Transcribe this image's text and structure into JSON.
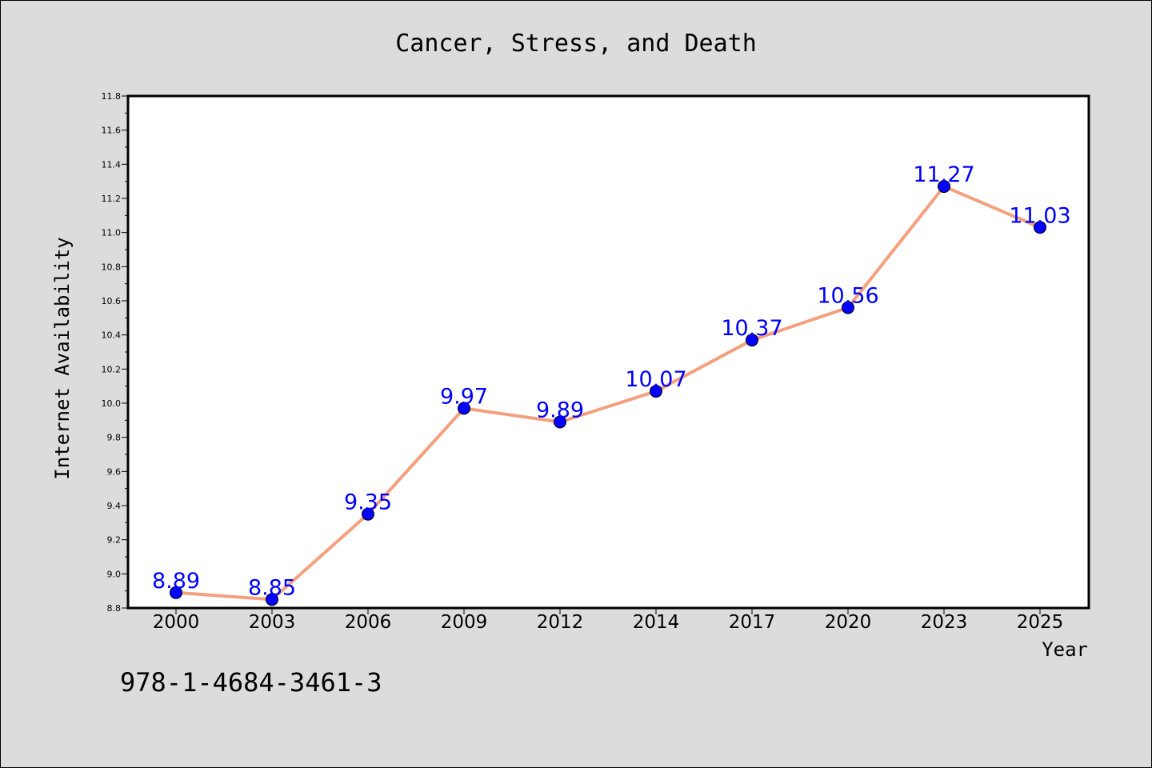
{
  "chart_data": {
    "type": "line",
    "title": "Cancer, Stress, and Death",
    "xlabel": "Year",
    "ylabel": "Internet Availability",
    "categories": [
      "2000",
      "2003",
      "2006",
      "2009",
      "2012",
      "2014",
      "2017",
      "2020",
      "2023",
      "2025"
    ],
    "values": [
      8.89,
      8.85,
      9.35,
      9.97,
      9.89,
      10.07,
      10.37,
      10.56,
      11.27,
      11.03
    ],
    "data_labels": [
      "8.89",
      "8.85",
      "9.35",
      "9.97",
      "9.89",
      "10.07",
      "10.37",
      "10.56",
      "11.27",
      "11.03"
    ],
    "ylim": [
      8.8,
      11.8
    ],
    "y_ticks": [
      8.8,
      9.0,
      9.2,
      9.4,
      9.6,
      9.8,
      10.0,
      10.2,
      10.4,
      10.6,
      10.8,
      11.0,
      11.2,
      11.4,
      11.6,
      11.8
    ],
    "y_tick_labels": [
      "8.8",
      "9.0",
      "9.2",
      "9.4",
      "9.6",
      "9.8",
      "10.0",
      "10.2",
      "10.4",
      "10.6",
      "10.8",
      "11.0",
      "11.2",
      "11.4",
      "11.6",
      "11.8"
    ],
    "grid": false,
    "line_color": "#f4a07e",
    "marker_color": "#0000ff",
    "label_color": "#0000ff",
    "plot_background": "#ffffff",
    "figure_background": "#dcdcdc"
  },
  "caption": "978-1-4684-3461-3"
}
